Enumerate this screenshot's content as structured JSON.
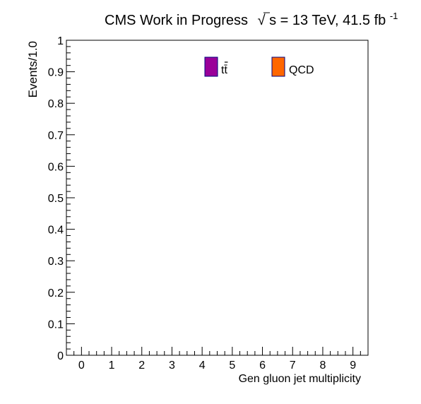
{
  "header": {
    "experiment": "CMS Work in Progress",
    "sqrt_symbol": "√",
    "energy_label": "s = 13 TeV, 41.5 fb",
    "lumi_exponent": "-1"
  },
  "chart_data": {
    "type": "bar",
    "xlabel": "Gen gluon jet multiplicity",
    "ylabel": "Events/1.0",
    "xlim": [
      -0.5,
      9.5
    ],
    "ylim": [
      0,
      1
    ],
    "x_ticks": [
      "0",
      "1",
      "2",
      "3",
      "4",
      "5",
      "6",
      "7",
      "8",
      "9"
    ],
    "y_ticks": [
      "0",
      "0.1",
      "0.2",
      "0.3",
      "0.4",
      "0.5",
      "0.6",
      "0.7",
      "0.8",
      "0.9",
      "1"
    ],
    "grid": false,
    "legend_position": "top-right",
    "series": [
      {
        "name": "tt̄",
        "color": "#990099",
        "values": []
      },
      {
        "name": "QCD",
        "color": "#ff6600",
        "values": []
      }
    ]
  }
}
